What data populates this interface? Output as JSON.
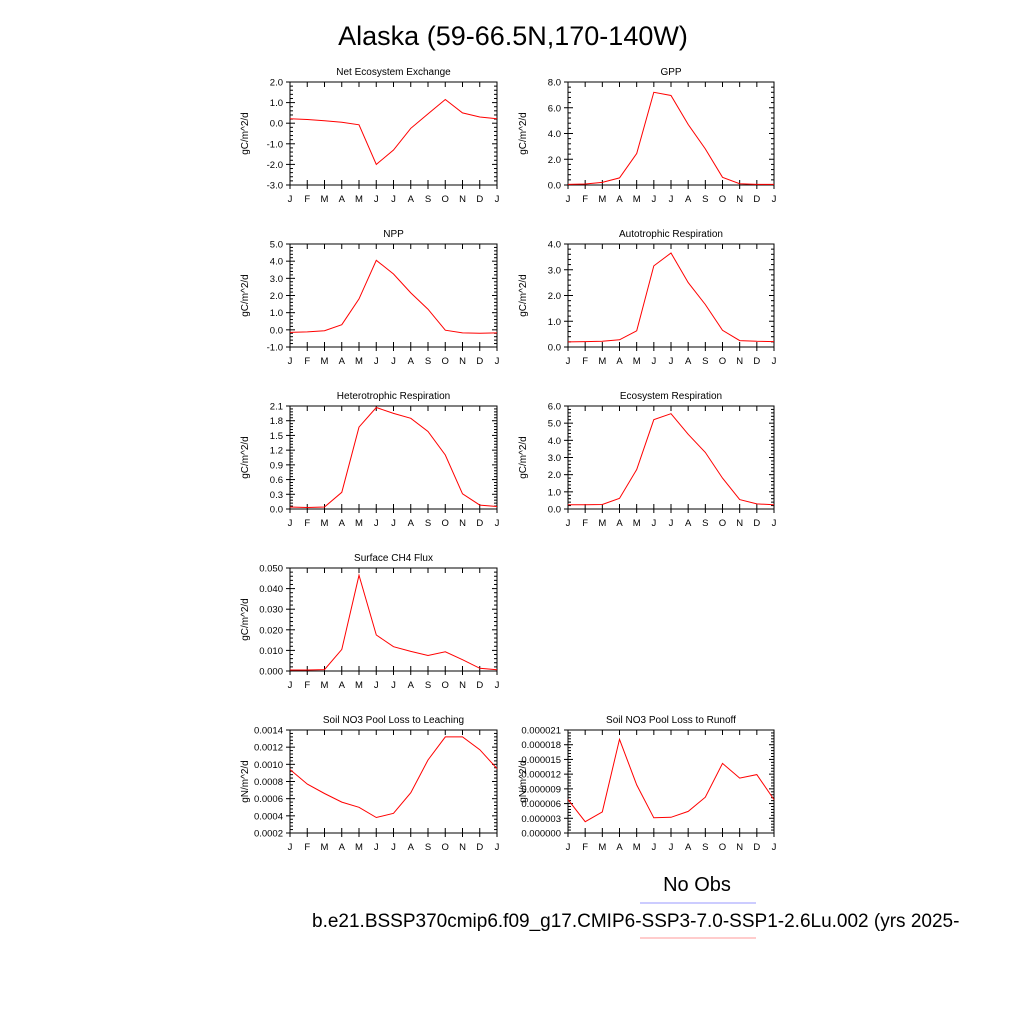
{
  "figure_title": "Alaska (59-66.5N,170-140W)",
  "legend": {
    "obs_label": "No Obs",
    "obs_color": "#9999ff",
    "case_label": "b.e21.BSSP370cmip6.f09_g17.CMIP6-SSP3-7.0-SSP1-2.6Lu.002 (yrs 2025-",
    "case_color": "#ff9999"
  },
  "line_color": "#ff0000",
  "chart_data": [
    {
      "type": "line",
      "title": "Net Ecosystem Exchange",
      "ylabel": "gC/m^2/d",
      "xticks": [
        "J",
        "F",
        "M",
        "A",
        "M",
        "J",
        "J",
        "A",
        "S",
        "O",
        "N",
        "D",
        "J"
      ],
      "ylim": [
        -3.0,
        2.0
      ],
      "yticks": [
        "-3.0",
        "-2.0",
        "-1.0",
        "0.0",
        "1.0",
        "2.0"
      ],
      "values": [
        0.22,
        0.18,
        0.12,
        0.05,
        -0.08,
        -2.0,
        -1.3,
        -0.25,
        0.45,
        1.15,
        0.5,
        0.3,
        0.22
      ]
    },
    {
      "type": "line",
      "title": "GPP",
      "ylabel": "gC/m^2/d",
      "xticks": [
        "J",
        "F",
        "M",
        "A",
        "M",
        "J",
        "J",
        "A",
        "S",
        "O",
        "N",
        "D",
        "J"
      ],
      "ylim": [
        0.0,
        8.0
      ],
      "yticks": [
        "0.0",
        "2.0",
        "4.0",
        "6.0",
        "8.0"
      ],
      "values": [
        0.05,
        0.08,
        0.2,
        0.55,
        2.45,
        7.2,
        6.95,
        4.7,
        2.8,
        0.6,
        0.1,
        0.05,
        0.05
      ]
    },
    {
      "type": "line",
      "title": "NPP",
      "ylabel": "gC/m^2/d",
      "xticks": [
        "J",
        "F",
        "M",
        "A",
        "M",
        "J",
        "J",
        "A",
        "S",
        "O",
        "N",
        "D",
        "J"
      ],
      "ylim": [
        -1.0,
        5.0
      ],
      "yticks": [
        "-1.0",
        "0.0",
        "1.0",
        "2.0",
        "3.0",
        "4.0",
        "5.0"
      ],
      "values": [
        -0.15,
        -0.12,
        -0.05,
        0.3,
        1.8,
        4.05,
        3.25,
        2.15,
        1.2,
        -0.02,
        -0.18,
        -0.2,
        -0.18
      ]
    },
    {
      "type": "line",
      "title": "Autotrophic Respiration",
      "ylabel": "gC/m^2/d",
      "xticks": [
        "J",
        "F",
        "M",
        "A",
        "M",
        "J",
        "J",
        "A",
        "S",
        "O",
        "N",
        "D",
        "J"
      ],
      "ylim": [
        0.0,
        4.0
      ],
      "yticks": [
        "0.0",
        "1.0",
        "2.0",
        "3.0",
        "4.0"
      ],
      "values": [
        0.2,
        0.21,
        0.22,
        0.28,
        0.63,
        3.15,
        3.65,
        2.5,
        1.65,
        0.65,
        0.25,
        0.22,
        0.21
      ]
    },
    {
      "type": "line",
      "title": "Heterotrophic Respiration",
      "ylabel": "gC/m^2/d",
      "xticks": [
        "J",
        "F",
        "M",
        "A",
        "M",
        "J",
        "J",
        "A",
        "S",
        "O",
        "N",
        "D",
        "J"
      ],
      "ylim": [
        0.0,
        2.1
      ],
      "yticks": [
        "0.0",
        "0.3",
        "0.6",
        "0.9",
        "1.2",
        "1.5",
        "1.8",
        "2.1"
      ],
      "values": [
        0.04,
        0.03,
        0.04,
        0.34,
        1.67,
        2.07,
        1.95,
        1.85,
        1.58,
        1.1,
        0.31,
        0.08,
        0.05
      ]
    },
    {
      "type": "line",
      "title": "Ecosystem Respiration",
      "ylabel": "gC/m^2/d",
      "xticks": [
        "J",
        "F",
        "M",
        "A",
        "M",
        "J",
        "J",
        "A",
        "S",
        "O",
        "N",
        "D",
        "J"
      ],
      "ylim": [
        0.0,
        6.0
      ],
      "yticks": [
        "0.0",
        "1.0",
        "2.0",
        "3.0",
        "4.0",
        "5.0",
        "6.0"
      ],
      "values": [
        0.25,
        0.25,
        0.26,
        0.62,
        2.3,
        5.2,
        5.55,
        4.35,
        3.3,
        1.8,
        0.55,
        0.3,
        0.25
      ]
    },
    {
      "type": "line",
      "title": "Surface CH4 Flux",
      "ylabel": "gC/m^2/d",
      "xticks": [
        "J",
        "F",
        "M",
        "A",
        "M",
        "J",
        "J",
        "A",
        "S",
        "O",
        "N",
        "D",
        "J"
      ],
      "ylim": [
        0.0,
        0.05
      ],
      "yticks": [
        "0.000",
        "0.010",
        "0.020",
        "0.030",
        "0.040",
        "0.050"
      ],
      "values": [
        0.0005,
        0.0005,
        0.0007,
        0.0105,
        0.0465,
        0.0175,
        0.0118,
        0.0095,
        0.0075,
        0.0093,
        0.0055,
        0.0013,
        0.0006
      ]
    },
    {
      "type": "line",
      "title": "Soil NO3 Pool Loss to Leaching",
      "ylabel": "gN/m^2/d",
      "xticks": [
        "J",
        "F",
        "M",
        "A",
        "M",
        "J",
        "J",
        "A",
        "S",
        "O",
        "N",
        "D",
        "J"
      ],
      "ylim": [
        0.0002,
        0.0014
      ],
      "yticks": [
        "0.0002",
        "0.0004",
        "0.0006",
        "0.0008",
        "0.0010",
        "0.0012",
        "0.0014"
      ],
      "values": [
        0.00094,
        0.00077,
        0.00066,
        0.00056,
        0.0005,
        0.00038,
        0.00043,
        0.00067,
        0.00105,
        0.00132,
        0.00132,
        0.00117,
        0.00095
      ]
    },
    {
      "type": "line",
      "title": "Soil NO3 Pool Loss to Runoff",
      "ylabel": "gN/m^2/d",
      "xticks": [
        "J",
        "F",
        "M",
        "A",
        "M",
        "J",
        "J",
        "A",
        "S",
        "O",
        "N",
        "D",
        "J"
      ],
      "ylim": [
        0.0,
        2.1e-05
      ],
      "yticks": [
        "0.000000",
        "0.000003",
        "0.000006",
        "0.000009",
        "0.000012",
        "0.000015",
        "0.000018",
        "0.000021"
      ],
      "values": [
        6.8e-06,
        2.3e-06,
        4.3e-06,
        1.91e-05,
        9.8e-06,
        3.1e-06,
        3.2e-06,
        4.4e-06,
        7.3e-06,
        1.42e-05,
        1.12e-05,
        1.19e-05,
        6.8e-06
      ]
    }
  ]
}
